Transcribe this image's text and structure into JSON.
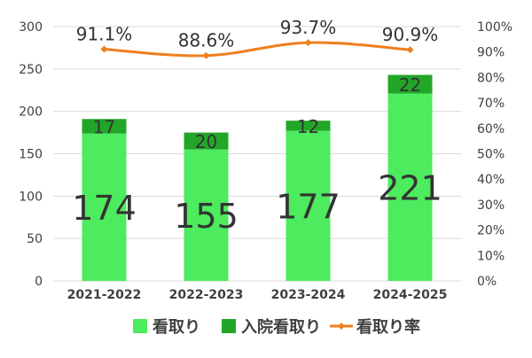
{
  "chart_data": {
    "type": "bar",
    "categories": [
      "2021-2022",
      "2022-2023",
      "2023-2024",
      "2024-2025"
    ],
    "series": [
      {
        "name": "看取り",
        "values": [
          174,
          155,
          177,
          221
        ],
        "color": "#4deb5e"
      },
      {
        "name": "入院看取り",
        "values": [
          17,
          20,
          12,
          22
        ],
        "color": "#22a628"
      },
      {
        "name": "看取り率",
        "type": "line",
        "axis": "right",
        "values": [
          91.1,
          88.6,
          93.7,
          90.9
        ],
        "labels": [
          "91.1%",
          "88.6%",
          "93.7%",
          "90.9%"
        ],
        "color": "#f07f1e"
      }
    ],
    "stacked": true,
    "ylim": [
      0,
      300
    ],
    "yticks": [
      "0",
      "50",
      "100",
      "150",
      "200",
      "250",
      "300"
    ],
    "y2lim": [
      0,
      100
    ],
    "y2ticks": [
      "0%",
      "10%",
      "20%",
      "30%",
      "40%",
      "50%",
      "60%",
      "70%",
      "80%",
      "90%",
      "100%"
    ],
    "legend_position": "bottom",
    "grid": true,
    "gridline_color": "#d9d9d9",
    "text_color": "#404040",
    "title": "",
    "xlabel": "",
    "ylabel": ""
  }
}
